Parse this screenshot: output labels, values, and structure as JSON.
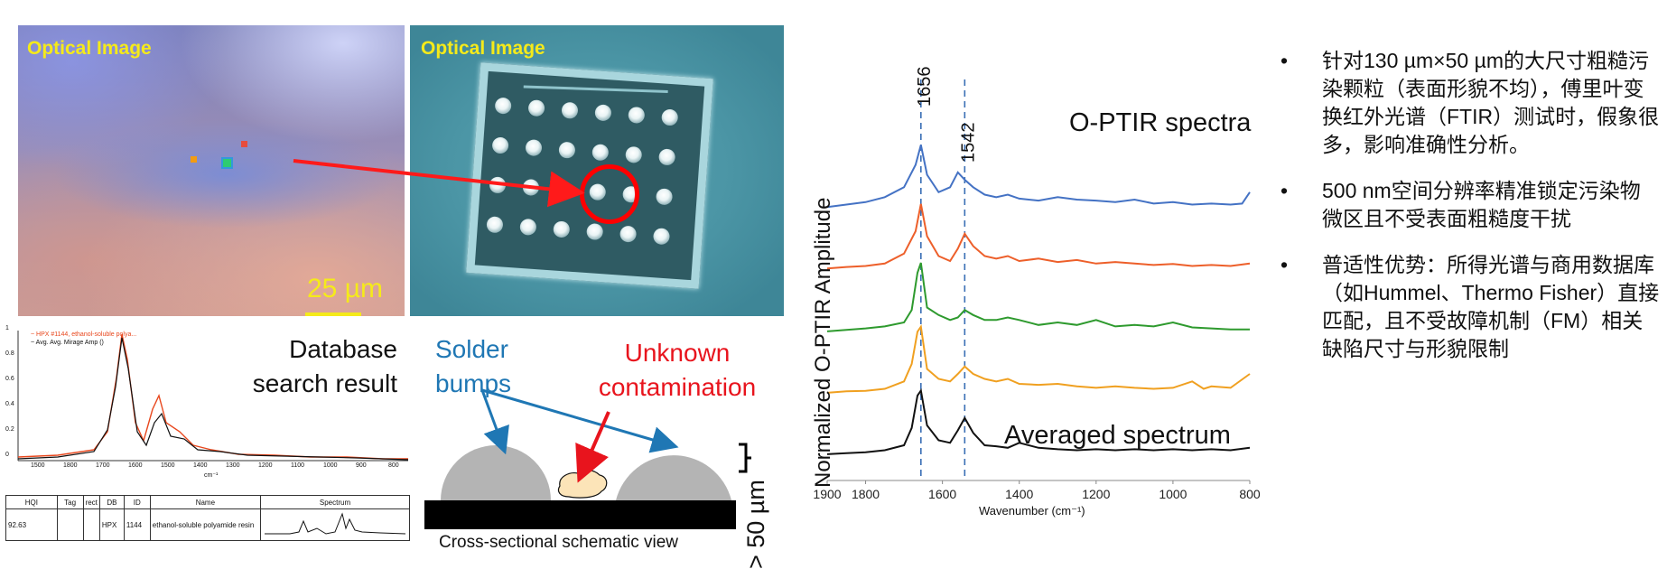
{
  "optical_image_1": {
    "label": "Optical Image",
    "scale_bar_text": "25 µm"
  },
  "optical_image_2": {
    "label": "Optical Image"
  },
  "database_panel": {
    "title_line1": "Database",
    "title_line2": "search result",
    "legend": [
      {
        "text": "~ HPX #1144, ethanol-soluble polya...",
        "color": "#e8471d"
      },
      {
        "text": "~ Avg. Avg. Mirage Amp ()",
        "color": "#111111"
      }
    ],
    "x_ticks": [
      "1500",
      "1800",
      "1700",
      "1600",
      "1500",
      "1400",
      "1300",
      "1200",
      "1100",
      "1000",
      "900",
      "800"
    ],
    "y_ticks": [
      "1",
      "0.8",
      "0.6",
      "0.4",
      "0.2",
      "0"
    ],
    "x_unit": "cm⁻¹",
    "table": {
      "headers": [
        "HQI",
        "Tag",
        "rect",
        "DB",
        "ID",
        "Name",
        "Spectrum"
      ],
      "row": [
        "92.63",
        "",
        "",
        "HPX",
        "1144",
        "ethanol-soluble polyamide resin",
        ""
      ]
    }
  },
  "schematic": {
    "solder_label_line1": "Solder",
    "solder_label_line2": "bumps",
    "unknown_label_line1": "Unknown",
    "unknown_label_line2": "contamination",
    "height_label": "> 50 µm",
    "caption": "Cross-sectional schematic view"
  },
  "chart_data": {
    "type": "line",
    "title": "O-PTIR spectra",
    "bottom_annotation": "Averaged spectrum",
    "xlabel": "Wavenumber (cm⁻¹)",
    "ylabel": "Normalized O-PTIR Amplitude",
    "x_ticks": [
      "1900",
      "1800",
      "1600",
      "1400",
      "1200",
      "1000",
      "800"
    ],
    "xlim": [
      1900,
      800
    ],
    "x_reversed": true,
    "peak_markers": [
      {
        "label": "1656",
        "x": 1656
      },
      {
        "label": "1542",
        "x": 1542
      }
    ],
    "series": [
      {
        "color": "#4472c4",
        "offset": 4,
        "points": [
          [
            1900,
            0.05
          ],
          [
            1850,
            0.1
          ],
          [
            1800,
            0.15
          ],
          [
            1750,
            0.25
          ],
          [
            1700,
            0.45
          ],
          [
            1670,
            0.9
          ],
          [
            1656,
            1.3
          ],
          [
            1640,
            0.7
          ],
          [
            1610,
            0.35
          ],
          [
            1580,
            0.45
          ],
          [
            1560,
            0.75
          ],
          [
            1542,
            0.6
          ],
          [
            1520,
            0.45
          ],
          [
            1490,
            0.3
          ],
          [
            1460,
            0.25
          ],
          [
            1430,
            0.3
          ],
          [
            1400,
            0.22
          ],
          [
            1350,
            0.18
          ],
          [
            1300,
            0.25
          ],
          [
            1250,
            0.2
          ],
          [
            1200,
            0.18
          ],
          [
            1150,
            0.15
          ],
          [
            1100,
            0.2
          ],
          [
            1050,
            0.12
          ],
          [
            1000,
            0.15
          ],
          [
            950,
            0.1
          ],
          [
            900,
            0.12
          ],
          [
            850,
            0.1
          ],
          [
            820,
            0.12
          ],
          [
            800,
            0.35
          ]
        ]
      },
      {
        "color": "#ed5f2a",
        "offset": 3,
        "points": [
          [
            1900,
            0.05
          ],
          [
            1850,
            0.08
          ],
          [
            1800,
            0.1
          ],
          [
            1750,
            0.15
          ],
          [
            1700,
            0.35
          ],
          [
            1670,
            0.8
          ],
          [
            1656,
            1.35
          ],
          [
            1640,
            0.7
          ],
          [
            1610,
            0.3
          ],
          [
            1580,
            0.2
          ],
          [
            1560,
            0.45
          ],
          [
            1542,
            0.75
          ],
          [
            1520,
            0.5
          ],
          [
            1490,
            0.3
          ],
          [
            1460,
            0.25
          ],
          [
            1430,
            0.3
          ],
          [
            1400,
            0.2
          ],
          [
            1350,
            0.25
          ],
          [
            1300,
            0.18
          ],
          [
            1250,
            0.22
          ],
          [
            1200,
            0.15
          ],
          [
            1150,
            0.18
          ],
          [
            1100,
            0.15
          ],
          [
            1050,
            0.12
          ],
          [
            1000,
            0.14
          ],
          [
            950,
            0.1
          ],
          [
            900,
            0.12
          ],
          [
            850,
            0.1
          ],
          [
            800,
            0.15
          ]
        ]
      },
      {
        "color": "#2e9a2e",
        "offset": 2,
        "points": [
          [
            1900,
            0.02
          ],
          [
            1850,
            0.05
          ],
          [
            1800,
            0.08
          ],
          [
            1750,
            0.12
          ],
          [
            1700,
            0.2
          ],
          [
            1680,
            0.45
          ],
          [
            1665,
            1.2
          ],
          [
            1656,
            1.4
          ],
          [
            1640,
            0.5
          ],
          [
            1610,
            0.35
          ],
          [
            1580,
            0.25
          ],
          [
            1560,
            0.3
          ],
          [
            1542,
            0.45
          ],
          [
            1520,
            0.35
          ],
          [
            1490,
            0.25
          ],
          [
            1460,
            0.25
          ],
          [
            1430,
            0.3
          ],
          [
            1400,
            0.25
          ],
          [
            1350,
            0.15
          ],
          [
            1300,
            0.2
          ],
          [
            1250,
            0.15
          ],
          [
            1200,
            0.25
          ],
          [
            1150,
            0.12
          ],
          [
            1100,
            0.15
          ],
          [
            1050,
            0.12
          ],
          [
            1000,
            0.2
          ],
          [
            950,
            0.1
          ],
          [
            900,
            0.08
          ],
          [
            850,
            0.06
          ],
          [
            800,
            0.06
          ]
        ]
      },
      {
        "color": "#f0a020",
        "offset": 1,
        "points": [
          [
            1900,
            0.02
          ],
          [
            1850,
            0.05
          ],
          [
            1800,
            0.06
          ],
          [
            1750,
            0.1
          ],
          [
            1700,
            0.25
          ],
          [
            1680,
            0.6
          ],
          [
            1665,
            1.25
          ],
          [
            1656,
            1.35
          ],
          [
            1640,
            0.5
          ],
          [
            1610,
            0.3
          ],
          [
            1580,
            0.25
          ],
          [
            1560,
            0.4
          ],
          [
            1542,
            0.55
          ],
          [
            1520,
            0.4
          ],
          [
            1490,
            0.3
          ],
          [
            1460,
            0.25
          ],
          [
            1430,
            0.3
          ],
          [
            1400,
            0.2
          ],
          [
            1350,
            0.18
          ],
          [
            1300,
            0.2
          ],
          [
            1250,
            0.15
          ],
          [
            1200,
            0.12
          ],
          [
            1150,
            0.15
          ],
          [
            1100,
            0.12
          ],
          [
            1050,
            0.1
          ],
          [
            1000,
            0.12
          ],
          [
            950,
            0.25
          ],
          [
            920,
            0.1
          ],
          [
            900,
            0.15
          ],
          [
            850,
            0.12
          ],
          [
            800,
            0.4
          ]
        ]
      },
      {
        "color": "#111111",
        "offset": 0,
        "points": [
          [
            1900,
            0.02
          ],
          [
            1850,
            0.04
          ],
          [
            1800,
            0.06
          ],
          [
            1750,
            0.1
          ],
          [
            1700,
            0.2
          ],
          [
            1680,
            0.55
          ],
          [
            1665,
            1.2
          ],
          [
            1656,
            1.3
          ],
          [
            1640,
            0.6
          ],
          [
            1610,
            0.3
          ],
          [
            1580,
            0.25
          ],
          [
            1560,
            0.5
          ],
          [
            1542,
            0.75
          ],
          [
            1520,
            0.45
          ],
          [
            1490,
            0.2
          ],
          [
            1460,
            0.18
          ],
          [
            1430,
            0.15
          ],
          [
            1400,
            0.25
          ],
          [
            1350,
            0.15
          ],
          [
            1300,
            0.12
          ],
          [
            1250,
            0.1
          ],
          [
            1200,
            0.12
          ],
          [
            1150,
            0.1
          ],
          [
            1100,
            0.12
          ],
          [
            1050,
            0.1
          ],
          [
            1000,
            0.12
          ],
          [
            950,
            0.1
          ],
          [
            900,
            0.12
          ],
          [
            850,
            0.1
          ],
          [
            800,
            0.15
          ]
        ]
      }
    ]
  },
  "bullets": [
    "针对130 µm×50 µm的大尺寸粗糙污染颗粒（表面形貌不均），傅里叶变换红外光谱（FTIR）测试时，假象很多，影响准确性分析。",
    "500 nm空间分辨率精准锁定污染物微区且不受表面粗糙度干扰",
    "普适性优势：所得光谱与商用数据库（如Hummel、Thermo Fisher）直接匹配，且不受故障机制（FM）相关缺陷尺寸与形貌限制"
  ],
  "bullet_symbol": "•",
  "colors": {
    "label_yellow": "#f5ea1a",
    "solder_blue": "#1f77b4",
    "contamination_red": "#e8141d",
    "bump_gray": "#b4b4b4"
  }
}
